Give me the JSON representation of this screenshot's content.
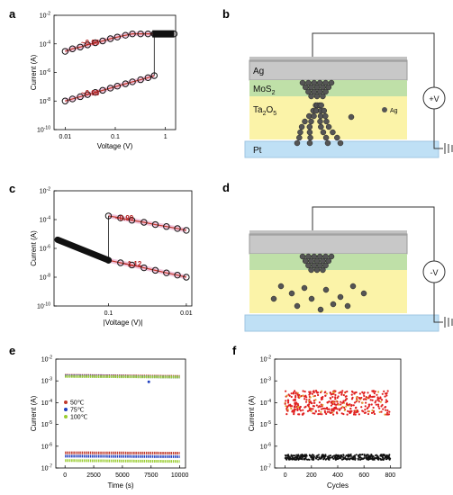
{
  "figure": {
    "panels": [
      {
        "id": "a",
        "label": "a",
        "xlabel": "Voltage (V)",
        "ylabel": "Current (A)",
        "xticks": [
          "0.01",
          "0.1",
          "1"
        ],
        "yticks": [
          "10",
          "10",
          "10",
          "10",
          "10"
        ],
        "yexp": [
          "-10",
          "-8",
          "-6",
          "-4",
          "-2"
        ],
        "annotations": [
          "~0.96",
          "~0.98"
        ]
      },
      {
        "id": "b",
        "label": "b",
        "layers": [
          "Ag",
          "MoS2",
          "Ta2O5",
          "Pt"
        ],
        "legend": "Ag",
        "bias": "+V"
      },
      {
        "id": "c",
        "label": "c",
        "xlabel": "|Voltage (V)|",
        "ylabel": "Current (A)",
        "xticks": [
          "0.1",
          "0.01"
        ],
        "yticks": [
          "10",
          "10",
          "10",
          "10",
          "10"
        ],
        "yexp": [
          "-10",
          "-8",
          "-6",
          "-4",
          "-2"
        ],
        "annotations": [
          "~0.99",
          "~1.12"
        ]
      },
      {
        "id": "d",
        "label": "d",
        "bias": "-V"
      },
      {
        "id": "e",
        "label": "e",
        "xlabel": "Time (s)",
        "ylabel": "Current (A)",
        "xticks": [
          "0",
          "2500",
          "5000",
          "7500",
          "10000"
        ],
        "yticks": [
          "10",
          "10",
          "10",
          "10",
          "10",
          "10",
          "10"
        ],
        "yexp": [
          "-7",
          "-6",
          "-5",
          "-4",
          "-3",
          "-2"
        ],
        "legend": [
          "50℃",
          "75℃",
          "100℃"
        ]
      },
      {
        "id": "f",
        "label": "f",
        "xlabel": "Cycles",
        "ylabel": "Current (A)",
        "xticks": [
          "0",
          "200",
          "400",
          "600",
          "800"
        ],
        "yticks": [
          "10",
          "10",
          "10",
          "10",
          "10",
          "10"
        ],
        "yexp": [
          "-7",
          "-6",
          "-5",
          "-4",
          "-3",
          "-2"
        ]
      }
    ]
  },
  "chart_data": [
    {
      "type": "scatter",
      "panel": "a",
      "xscale": "log",
      "yscale": "log",
      "xlim": [
        0.006,
        1.6
      ],
      "ylim": [
        1e-10,
        0.01
      ],
      "series": [
        {
          "values_x": [
            0.01,
            0.014,
            0.02,
            0.028,
            0.04,
            0.056,
            0.08,
            0.11,
            0.16,
            0.22,
            0.32,
            0.45,
            0.6,
            0.8,
            1.0,
            1.2,
            1.5
          ],
          "values_y": [
            3e-05,
            4.5e-05,
            6e-05,
            8.5e-05,
            0.00012,
            0.00016,
            0.00023,
            0.0003,
            0.0004,
            0.0005,
            0.0005,
            0.0005,
            0.0005,
            0.0005,
            0.0005,
            0.0005,
            0.0005
          ]
        },
        {
          "values_x": [
            0.01,
            0.014,
            0.02,
            0.028,
            0.04,
            0.056,
            0.08,
            0.11,
            0.16,
            0.22,
            0.32,
            0.45,
            0.6
          ],
          "values_y": [
            1e-08,
            1.4e-08,
            2e-08,
            2.8e-08,
            4e-08,
            5.6e-08,
            8e-08,
            1.1e-07,
            1.6e-07,
            2.2e-07,
            3.1e-07,
            4.3e-07,
            6e-07
          ]
        }
      ]
    },
    {
      "type": "scatter",
      "panel": "c",
      "xscale": "log",
      "yscale": "log",
      "xlim": [
        0.5,
        0.0085
      ],
      "ylim": [
        1e-10,
        0.01
      ],
      "series": [
        {
          "values_x": [
            0.1,
            0.07,
            0.05,
            0.035,
            0.025,
            0.018,
            0.013,
            0.01
          ],
          "values_y": [
            0.00018,
            0.00013,
            9e-05,
            6.5e-05,
            4.5e-05,
            3.3e-05,
            2.4e-05,
            1.8e-05
          ]
        },
        {
          "values_x": [
            0.1,
            0.07,
            0.05,
            0.035,
            0.025,
            0.018,
            0.013,
            0.01
          ],
          "values_y": [
            1.5e-07,
            1e-07,
            7e-08,
            4.5e-08,
            3e-08,
            2e-08,
            1.4e-08,
            1e-08
          ]
        }
      ]
    },
    {
      "type": "scatter",
      "panel": "e",
      "yscale": "log",
      "xlim": [
        -800,
        10500
      ],
      "ylim": [
        1e-07,
        0.01
      ],
      "series": [
        {
          "name": "50℃",
          "color": "#c0392b",
          "values_x": [
            0,
            10000
          ],
          "values_y_high": [
            0.0018,
            0.0016
          ],
          "values_y_low": [
            5e-07,
            4.8e-07
          ]
        },
        {
          "name": "75℃",
          "color": "#1f3fbf",
          "values_x": [
            0,
            10000
          ],
          "values_y_high": [
            0.0017,
            0.0015
          ],
          "values_y_low": [
            3.5e-07,
            3.3e-07
          ]
        },
        {
          "name": "100℃",
          "color": "#9acd32",
          "values_x": [
            0,
            10000
          ],
          "values_y_high": [
            0.0016,
            0.0015
          ],
          "values_y_low": [
            2.2e-07,
            2e-07
          ]
        }
      ]
    },
    {
      "type": "scatter",
      "panel": "f",
      "yscale": "log",
      "xlim": [
        -80,
        880
      ],
      "ylim": [
        1e-07,
        0.01
      ],
      "series": [
        {
          "color": "#e02020",
          "values_x": [
            0,
            800
          ],
          "values_y": [
            0.0001,
            0.0001
          ]
        },
        {
          "color": "#111111",
          "values_x": [
            0,
            800
          ],
          "values_y": [
            3e-07,
            3e-07
          ]
        }
      ]
    }
  ]
}
